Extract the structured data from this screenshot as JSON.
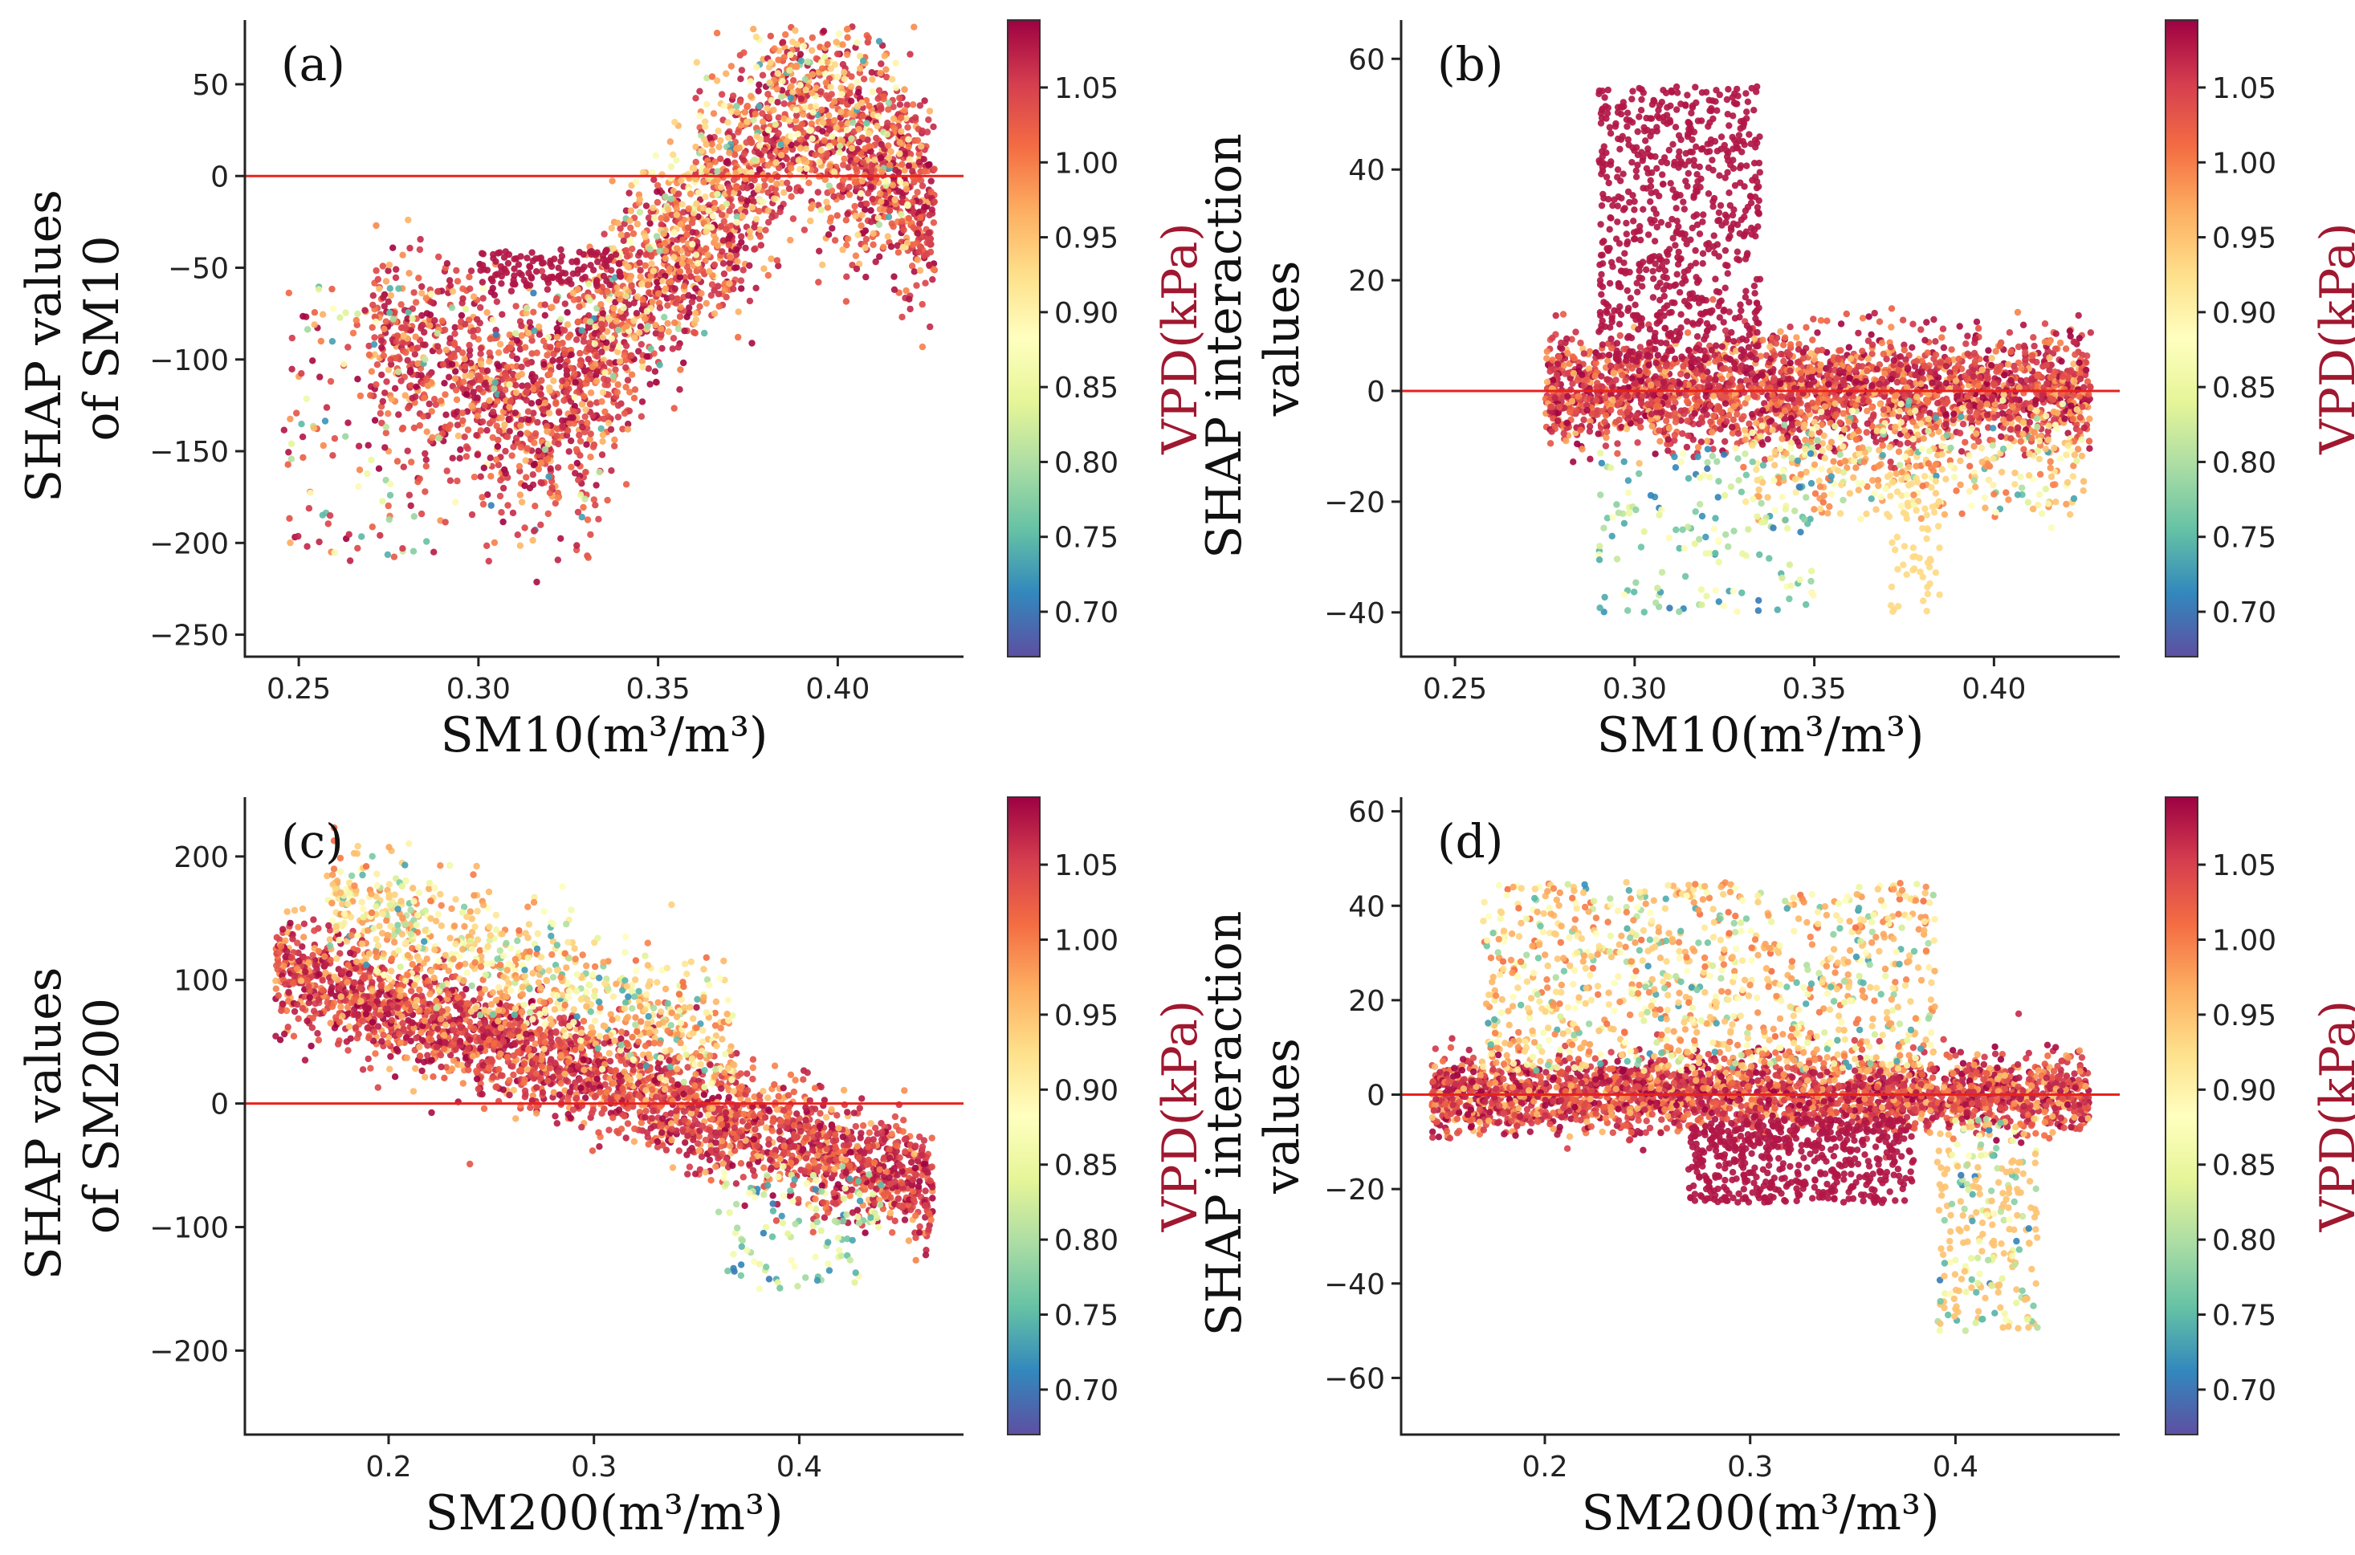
{
  "figure": {
    "colorbar_title": "VPD(kPa)",
    "colorbar_ticks": [
      0.7,
      0.75,
      0.8,
      0.85,
      0.9,
      0.95,
      1.0,
      1.05
    ],
    "colorbar_range": [
      0.67,
      1.095
    ],
    "colormap": [
      "#5e4fa2",
      "#3288bd",
      "#66c2a5",
      "#abdda4",
      "#e6f598",
      "#ffffbf",
      "#fee08b",
      "#fdae61",
      "#f46d43",
      "#d53e4f",
      "#9e0142"
    ]
  },
  "chart_data": [
    {
      "id": "a",
      "type": "scatter",
      "panel_label": "(a)",
      "xlabel": "SM10(m³/m³)",
      "ylabel": [
        "SHAP values",
        "of SM10"
      ],
      "xlim": [
        0.235,
        0.435
      ],
      "ylim": [
        -262,
        85
      ],
      "xticks": [
        0.25,
        0.3,
        0.35,
        0.4
      ],
      "xtick_labels": [
        "0.25",
        "0.30",
        "0.35",
        "0.40"
      ],
      "yticks": [
        50,
        0,
        -50,
        -100,
        -150,
        -200,
        -250
      ],
      "ytick_labels": [
        "50",
        "0",
        "−50",
        "−100",
        "−150",
        "−200",
        "−250"
      ],
      "zero_line": 0,
      "color": "VPD (kPa)"
    },
    {
      "id": "b",
      "type": "scatter",
      "panel_label": "(b)",
      "xlabel": "SM10(m³/m³)",
      "ylabel": [
        "SHAP interaction",
        "values"
      ],
      "xlim": [
        0.235,
        0.435
      ],
      "ylim": [
        -48,
        67
      ],
      "xticks": [
        0.25,
        0.3,
        0.35,
        0.4
      ],
      "xtick_labels": [
        "0.25",
        "0.30",
        "0.35",
        "0.40"
      ],
      "yticks": [
        60,
        40,
        20,
        0,
        -20,
        -40
      ],
      "ytick_labels": [
        "60",
        "40",
        "20",
        "0",
        "−20",
        "−40"
      ],
      "zero_line": 0,
      "color": "VPD (kPa)"
    },
    {
      "id": "c",
      "type": "scatter",
      "panel_label": "(c)",
      "xlabel": "SM200(m³/m³)",
      "ylabel": [
        "SHAP values",
        "of SM200"
      ],
      "xlim": [
        0.13,
        0.48
      ],
      "ylim": [
        -268,
        248
      ],
      "xticks": [
        0.2,
        0.3,
        0.4
      ],
      "xtick_labels": [
        "0.2",
        "0.3",
        "0.4"
      ],
      "yticks": [
        200,
        100,
        0,
        -100,
        -200
      ],
      "ytick_labels": [
        "200",
        "100",
        "0",
        "−100",
        "−200"
      ],
      "zero_line": 0,
      "color": "VPD (kPa)"
    },
    {
      "id": "d",
      "type": "scatter",
      "panel_label": "(d)",
      "xlabel": "SM200(m³/m³)",
      "ylabel": [
        "SHAP interaction",
        "values"
      ],
      "xlim": [
        0.13,
        0.48
      ],
      "ylim": [
        -72,
        63
      ],
      "xticks": [
        0.2,
        0.3,
        0.4
      ],
      "xtick_labels": [
        "0.2",
        "0.3",
        "0.4"
      ],
      "yticks": [
        60,
        40,
        20,
        0,
        -20,
        -40,
        -60
      ],
      "ytick_labels": [
        "60",
        "40",
        "20",
        "0",
        "−20",
        "−40",
        "−60"
      ],
      "zero_line": 0,
      "color": "VPD (kPa)"
    }
  ]
}
